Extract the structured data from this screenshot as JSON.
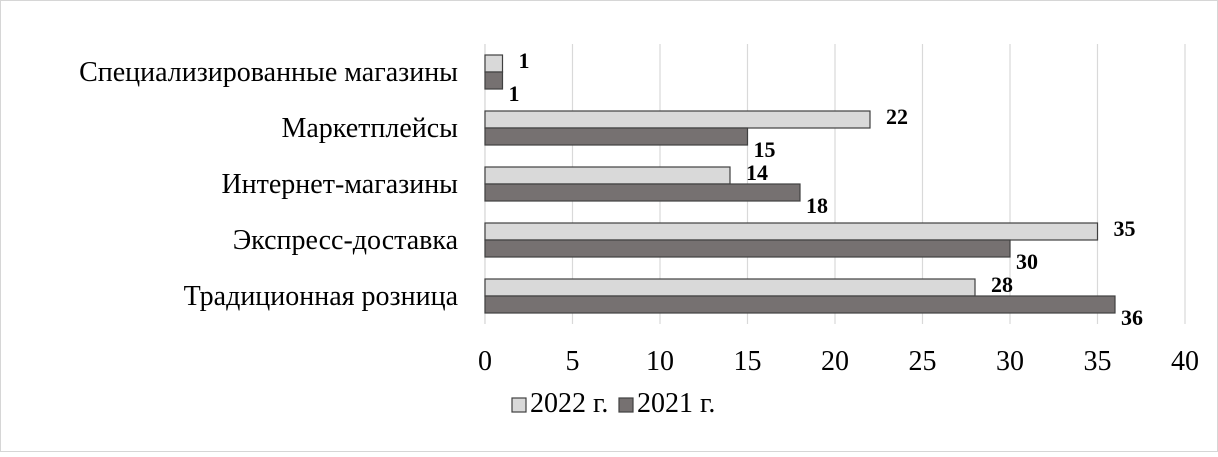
{
  "chart_data": {
    "type": "bar",
    "orientation": "horizontal",
    "categories": [
      "Традиционная розница",
      "Экспресс-доставка",
      "Интернет-магазины",
      "Маркетплейсы",
      "Специализированные магазины"
    ],
    "series": [
      {
        "name": "2022 г.",
        "values": [
          28,
          35,
          14,
          22,
          1
        ],
        "color": "#d9d9d9"
      },
      {
        "name": "2021 г.",
        "values": [
          36,
          30,
          18,
          15,
          1
        ],
        "color": "#767171"
      }
    ],
    "xlim": [
      0,
      40
    ],
    "xticks": [
      0,
      5,
      10,
      15,
      20,
      25,
      30,
      35,
      40
    ],
    "grid": "vertical",
    "legend_position": "bottom",
    "data_labels": true
  }
}
